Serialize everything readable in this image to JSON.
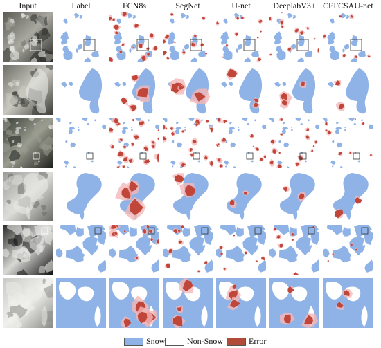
{
  "figure": {
    "columns": [
      {
        "label": "Input",
        "kind": "input"
      },
      {
        "label": "Label",
        "kind": "label"
      },
      {
        "label": "FCN8s",
        "kind": "pred",
        "err": 1.0
      },
      {
        "label": "SegNet",
        "kind": "pred",
        "err": 0.7
      },
      {
        "label": "U-net",
        "kind": "pred",
        "err": 0.55
      },
      {
        "label": "DeeplabV3+",
        "kind": "pred",
        "err": 0.6
      },
      {
        "label": "CEFCSAU-net",
        "kind": "pred",
        "err": 0.3
      }
    ],
    "rows": [
      {
        "scene": "sparse-patches",
        "tone": "mountain-dark",
        "has_zoom_box": true
      },
      {
        "scene": "zoom-lobe",
        "tone": "blurred-gray",
        "has_zoom_box": false
      },
      {
        "scene": "thin-streaks",
        "tone": "dark-vegetation",
        "has_zoom_box": true
      },
      {
        "scene": "zoom-mass",
        "tone": "light-blur",
        "has_zoom_box": false
      },
      {
        "scene": "dense-network",
        "tone": "high-contrast",
        "has_zoom_box": true
      },
      {
        "scene": "mostly-snow",
        "tone": "pale",
        "has_zoom_box": false
      }
    ]
  },
  "legend": {
    "items": [
      {
        "label": "Snow",
        "color": "#8fb3e6"
      },
      {
        "label": "Non-Snow",
        "color": "#ffffff"
      },
      {
        "label": "Error",
        "color": "#b24a3a"
      }
    ]
  },
  "colors": {
    "snow": "#8fb3e6",
    "error": "#c0463a",
    "error_halo": "#f4b7b7",
    "box": "#333333"
  }
}
